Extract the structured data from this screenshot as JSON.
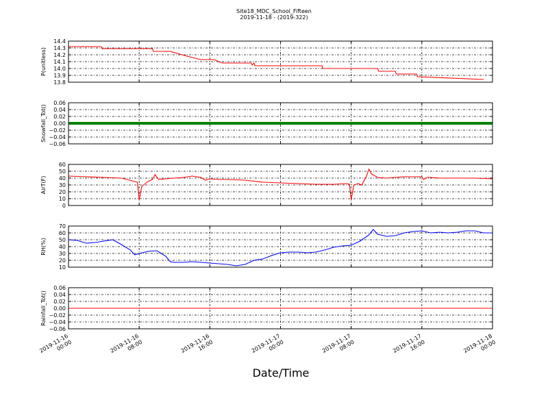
{
  "title": "Site18_MDC_School_Fifteen",
  "subtitle": "2019-11-18 - (2019-322)",
  "xlabel": "Date/Time",
  "x_ticks": [
    [
      "2019-11-16",
      "00:00"
    ],
    [
      "2019-11-16",
      "08:00"
    ],
    [
      "2019-11-16",
      "16:00"
    ],
    [
      "2019-11-17",
      "00:00"
    ],
    [
      "2019-11-17",
      "08:00"
    ],
    [
      "2019-11-17",
      "16:00"
    ],
    [
      "2019-11-18",
      "00:00"
    ]
  ],
  "colors": {
    "red": "#ff0000",
    "green": "#008000",
    "blue": "#0000ff"
  },
  "chart_data": [
    {
      "type": "line",
      "ylabel": "P(unitless)",
      "ylim": [
        13.8,
        14.4
      ],
      "yticks": [
        "13.8",
        "13.9",
        "14.0",
        "14.1",
        "14.2",
        "14.3",
        "14.4"
      ],
      "x_unit": "hours since 2019-11-16 00:00",
      "xlim": [
        0,
        48
      ],
      "grid": true,
      "series": [
        {
          "color": "#ff0000",
          "x": [
            0,
            3.7,
            3.8,
            9.5,
            9.6,
            11.5,
            12.6,
            13.7,
            15.0,
            16.5,
            17.4,
            19.4,
            20.7,
            20.8,
            21.0,
            21.1,
            28.7,
            28.8,
            35.0,
            35.1,
            37.0,
            37.1,
            39.4,
            39.5,
            47.0
          ],
          "values": [
            14.32,
            14.32,
            14.29,
            14.29,
            14.25,
            14.25,
            14.21,
            14.17,
            14.13,
            14.13,
            14.08,
            14.08,
            14.08,
            14.05,
            14.08,
            14.04,
            14.04,
            14.0,
            14.0,
            13.96,
            13.96,
            13.92,
            13.92,
            13.88,
            13.84
          ]
        }
      ]
    },
    {
      "type": "line",
      "ylabel": "Snowfall_Tot()",
      "ylim": [
        -0.06,
        0.06
      ],
      "yticks": [
        "−0.06",
        "−0.04",
        "−0.02",
        "0.00",
        "0.02",
        "0.04",
        "0.06"
      ],
      "xlim": [
        0,
        48
      ],
      "grid": true,
      "series": [
        {
          "color": "#008000",
          "x": [
            0,
            48
          ],
          "values": [
            0,
            0
          ]
        }
      ]
    },
    {
      "type": "line",
      "ylabel": "AirT(F)",
      "ylim": [
        0,
        60
      ],
      "yticks": [
        "0",
        "10",
        "20",
        "30",
        "40",
        "50",
        "60"
      ],
      "xlim": [
        0,
        48
      ],
      "grid": true,
      "series": [
        {
          "color": "#ff0000",
          "x": [
            0,
            2,
            4,
            6,
            7.5,
            7.8,
            8.0,
            8.3,
            8.7,
            9.0,
            9.5,
            9.8,
            10.2,
            11,
            12,
            13,
            14,
            15,
            15.5,
            16,
            17,
            18,
            20,
            22,
            24,
            26,
            28,
            30,
            31.5,
            31.8,
            32.0,
            32.3,
            32.8,
            33.2,
            33.7,
            34.0,
            34.3,
            35,
            36,
            38,
            40,
            40.2,
            40.6,
            41,
            42,
            44,
            46,
            48
          ],
          "values": [
            43,
            42,
            41,
            40,
            35,
            34,
            8,
            28,
            32,
            35,
            38,
            45,
            38,
            39,
            40,
            41,
            43,
            41,
            37,
            39,
            38,
            38,
            37,
            34,
            33,
            32,
            31,
            31,
            32,
            31,
            8,
            30,
            32,
            30,
            42,
            53,
            46,
            41,
            40,
            42,
            42,
            38,
            41,
            41,
            40,
            40,
            40,
            39
          ]
        }
      ]
    },
    {
      "type": "line",
      "ylabel": "RH(%)",
      "ylim": [
        10,
        70
      ],
      "yticks": [
        "10",
        "20",
        "30",
        "40",
        "50",
        "60",
        "70"
      ],
      "xlim": [
        0,
        48
      ],
      "grid": true,
      "series": [
        {
          "color": "#0000ff",
          "x": [
            0,
            1,
            2,
            3,
            4,
            5,
            6,
            7,
            7.5,
            8,
            9,
            10,
            11,
            11.5,
            12,
            13,
            14,
            15,
            16,
            17,
            18,
            19,
            20,
            21,
            22,
            23,
            24,
            25,
            26,
            27,
            28,
            29,
            30,
            31,
            32,
            33,
            34,
            34.5,
            35,
            36,
            37,
            38,
            39,
            40,
            41,
            42,
            43,
            44,
            45,
            46,
            47,
            48
          ],
          "values": [
            50,
            49,
            45,
            46,
            48,
            50,
            43,
            35,
            28,
            30,
            33,
            34,
            26,
            18,
            17,
            17,
            18,
            17,
            16,
            15,
            14,
            12,
            14,
            20,
            22,
            27,
            31,
            32,
            32,
            31,
            32,
            35,
            39,
            41,
            42,
            48,
            57,
            65,
            58,
            55,
            56,
            60,
            62,
            63,
            60,
            61,
            60,
            61,
            63,
            63,
            60,
            60
          ]
        }
      ]
    },
    {
      "type": "line",
      "ylabel": "Rainfall_Tot()",
      "ylim": [
        -0.06,
        0.06
      ],
      "yticks": [
        "−0.06",
        "−0.04",
        "−0.02",
        "0.00",
        "0.02",
        "0.04",
        "0.06"
      ],
      "xlim": [
        0,
        48
      ],
      "grid": true,
      "series": [
        {
          "color": "#ff0000",
          "x": [
            0,
            48
          ],
          "values": [
            0,
            0
          ]
        }
      ]
    }
  ]
}
